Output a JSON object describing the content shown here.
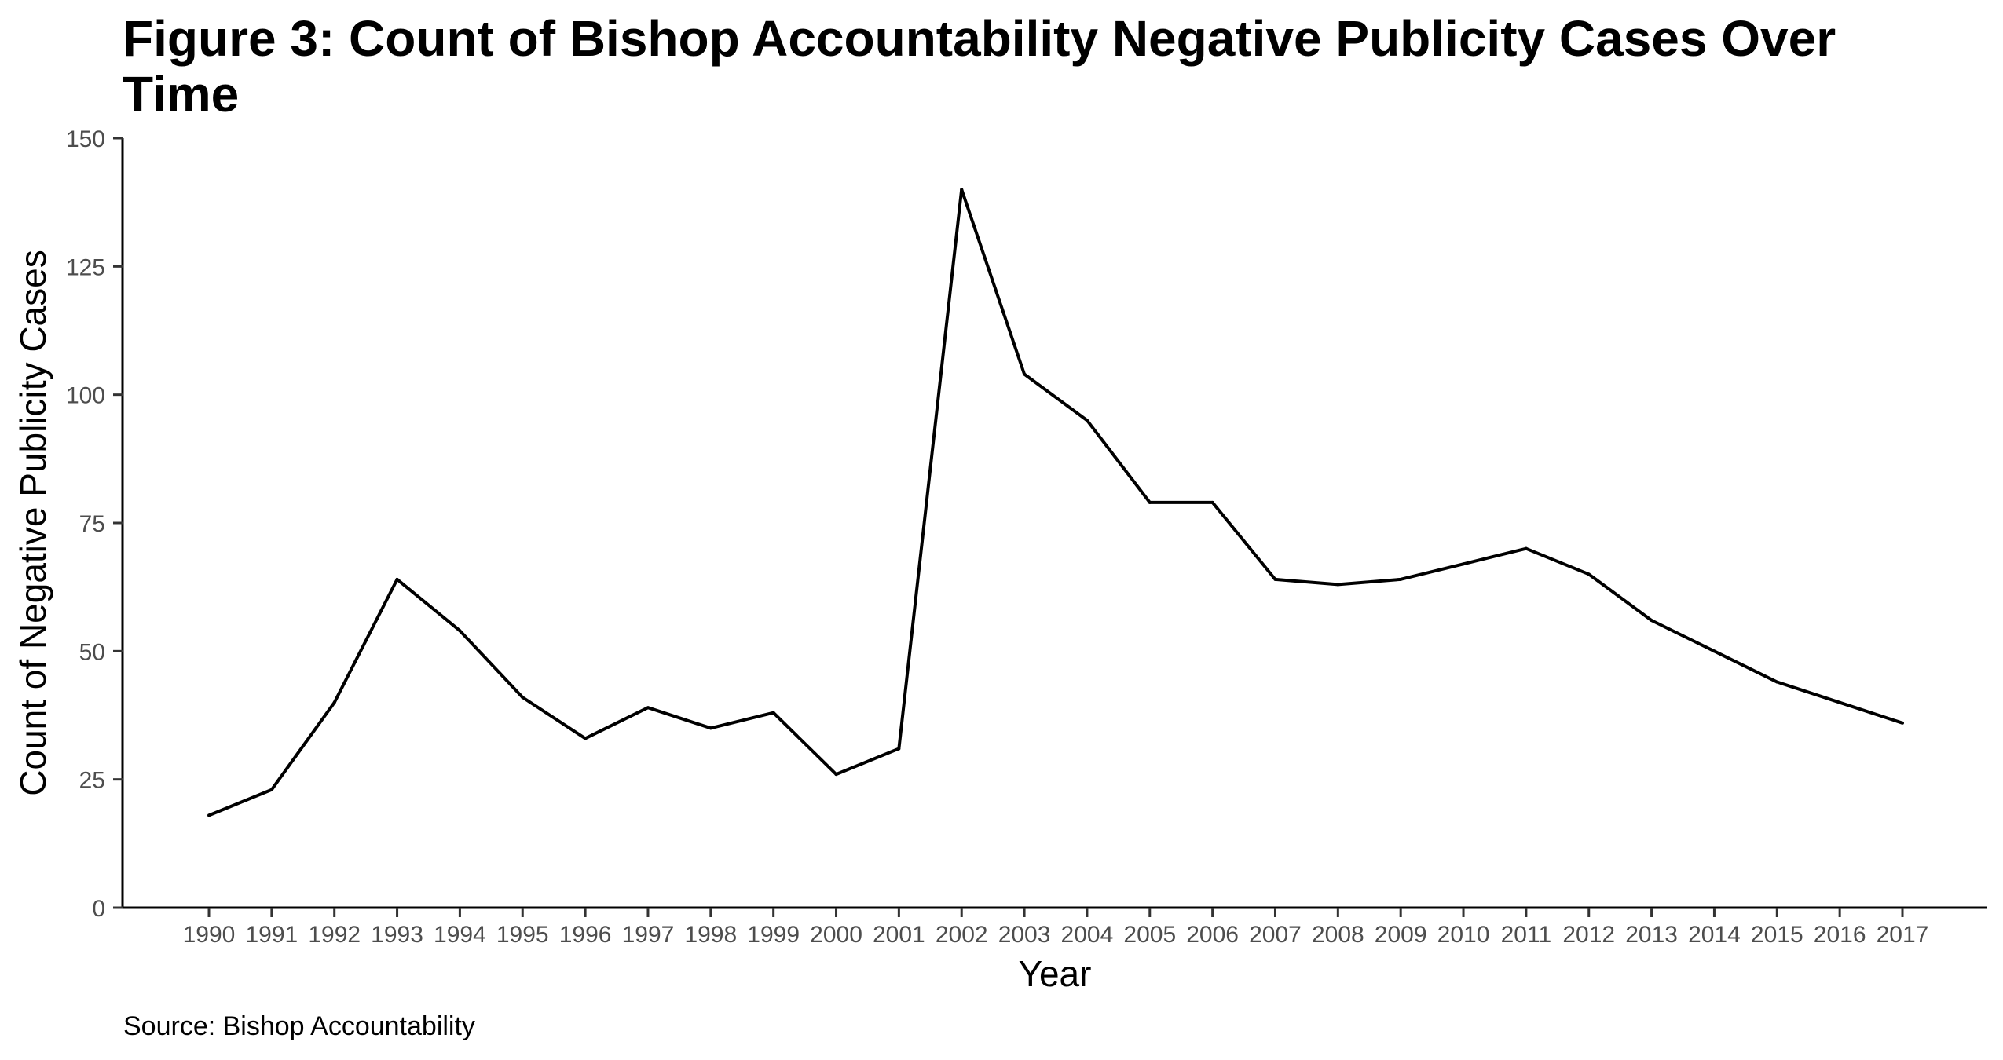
{
  "chart_data": {
    "type": "line",
    "title": "Figure 3: Count of Bishop Accountability Negative Publicity Cases Over Time",
    "xlabel": "Year",
    "ylabel": "Count of Negative Publicity Cases",
    "caption": "Source: Bishop Accountability",
    "x": [
      "1990",
      "1991",
      "1992",
      "1993",
      "1994",
      "1995",
      "1996",
      "1997",
      "1998",
      "1999",
      "2000",
      "2001",
      "2002",
      "2003",
      "2004",
      "2005",
      "2006",
      "2007",
      "2008",
      "2009",
      "2010",
      "2011",
      "2012",
      "2013",
      "2014",
      "2015",
      "2016",
      "2017"
    ],
    "series": [
      {
        "values": [
          18,
          23,
          40,
          64,
          54,
          41,
          33,
          39,
          35,
          38,
          26,
          31,
          140,
          104,
          95,
          79,
          79,
          64,
          63,
          64,
          67,
          70,
          65,
          56,
          50,
          44,
          40,
          36
        ],
        "color": "#000000"
      }
    ],
    "ylim": [
      0,
      150
    ],
    "yticks": [
      0,
      25,
      50,
      75,
      100,
      125,
      150
    ],
    "grid": false,
    "legend": "none"
  }
}
